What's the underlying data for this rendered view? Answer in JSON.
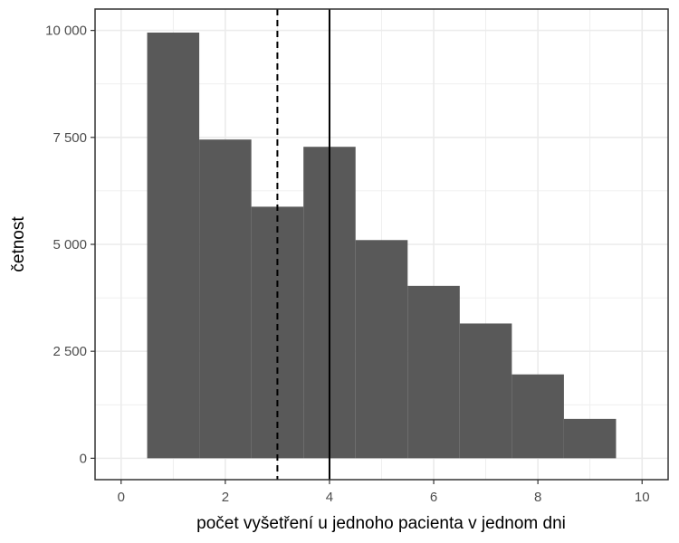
{
  "chart_data": {
    "type": "bar",
    "subtype": "histogram",
    "xlabel": "počet vyšetření u jednoho pacienta v jednom dni",
    "ylabel": "četnost",
    "xlim": [
      -0.5,
      10.5
    ],
    "ylim": [
      -500,
      10500
    ],
    "x_ticks": [
      0,
      2,
      4,
      6,
      8,
      10
    ],
    "x_tick_labels": [
      "0",
      "2",
      "4",
      "6",
      "8",
      "10"
    ],
    "y_ticks": [
      0,
      2500,
      5000,
      7500,
      10000
    ],
    "y_tick_labels": [
      "0",
      "2 500",
      "5 000",
      "7 500",
      "10 000"
    ],
    "bins": [
      1,
      2,
      3,
      4,
      5,
      6,
      7,
      8,
      9
    ],
    "values": [
      9950,
      7450,
      5880,
      7280,
      5100,
      4030,
      3150,
      1960,
      920
    ],
    "vlines": [
      {
        "x": 3,
        "style": "dashed"
      },
      {
        "x": 4,
        "style": "solid"
      }
    ],
    "grid": true,
    "colors": {
      "bar": "#595959",
      "grid": "#ebebeb",
      "panel_border": "#333333",
      "background": "#ffffff"
    }
  }
}
